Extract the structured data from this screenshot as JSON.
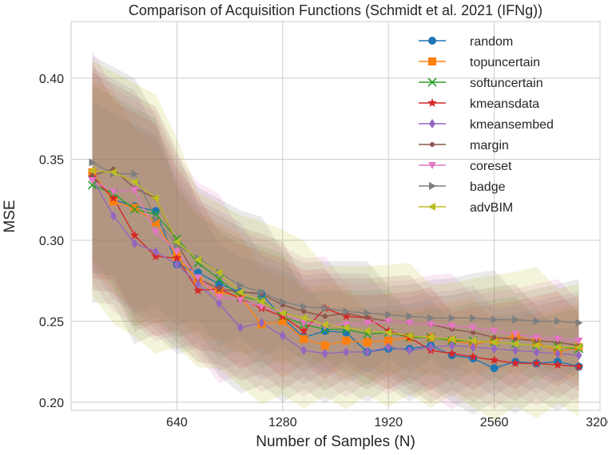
{
  "chart_data": {
    "type": "line",
    "title": "Comparison of Acquisition Functions (Schmidt et al. 2021 (IFNg))",
    "xlabel": "Number of Samples (N)",
    "ylabel": "MSE",
    "xlim": [
      0,
      3200
    ],
    "ylim": [
      0.195,
      0.435
    ],
    "xticks": [
      640,
      1280,
      1920,
      2560,
      3200
    ],
    "xtick_labels": [
      "640",
      "1280",
      "1920",
      "2560",
      "3200"
    ],
    "yticks": [
      0.2,
      0.25,
      0.3,
      0.35,
      0.4
    ],
    "ytick_labels": [
      "0.20",
      "0.25",
      "0.30",
      "0.35",
      "0.40"
    ],
    "grid": true,
    "legend_position": "top-right",
    "x": [
      128,
      256,
      384,
      512,
      640,
      768,
      896,
      1024,
      1152,
      1280,
      1408,
      1536,
      1664,
      1792,
      1920,
      2048,
      2176,
      2304,
      2432,
      2560,
      2688,
      2816,
      2944,
      3072
    ],
    "series": [
      {
        "name": "random",
        "color": "#1f77b4",
        "marker": "circle",
        "values": [
          0.34,
          0.325,
          0.321,
          0.318,
          0.285,
          0.28,
          0.273,
          0.268,
          0.267,
          0.252,
          0.24,
          0.244,
          0.243,
          0.231,
          0.233,
          0.233,
          0.235,
          0.229,
          0.227,
          0.221,
          0.225,
          0.224,
          0.225,
          0.222
        ]
      },
      {
        "name": "topuncertain",
        "color": "#ff7f0e",
        "marker": "square",
        "values": [
          0.342,
          0.324,
          0.32,
          0.311,
          0.29,
          0.275,
          0.268,
          0.265,
          0.248,
          0.25,
          0.239,
          0.235,
          0.238,
          0.237,
          0.238,
          0.24,
          0.24,
          0.238,
          0.236,
          0.238,
          0.241,
          0.237,
          0.231,
          0.234
        ]
      },
      {
        "name": "softuncertain",
        "color": "#2ca02c",
        "marker": "x",
        "values": [
          0.334,
          0.329,
          0.319,
          0.316,
          0.301,
          0.286,
          0.276,
          0.265,
          0.263,
          0.253,
          0.248,
          0.245,
          0.245,
          0.242,
          0.243,
          0.24,
          0.24,
          0.238,
          0.238,
          0.237,
          0.236,
          0.235,
          0.234,
          0.233
        ]
      },
      {
        "name": "kmeansdata",
        "color": "#d62728",
        "marker": "star",
        "values": [
          0.339,
          0.326,
          0.303,
          0.29,
          0.289,
          0.269,
          0.27,
          0.264,
          0.258,
          0.253,
          0.244,
          0.258,
          0.253,
          0.252,
          0.244,
          0.24,
          0.232,
          0.23,
          0.228,
          0.226,
          0.224,
          0.224,
          0.223,
          0.222
        ]
      },
      {
        "name": "kmeansembed",
        "color": "#9467bd",
        "marker": "diamond",
        "values": [
          0.338,
          0.315,
          0.298,
          0.293,
          0.285,
          0.273,
          0.261,
          0.246,
          0.249,
          0.241,
          0.232,
          0.23,
          0.231,
          0.231,
          0.234,
          0.232,
          0.234,
          0.235,
          0.234,
          0.233,
          0.232,
          0.231,
          0.23,
          0.229
        ]
      },
      {
        "name": "margin",
        "color": "#8c564b",
        "marker": "dot",
        "values": [
          0.34,
          0.344,
          0.332,
          0.326,
          0.298,
          0.276,
          0.27,
          0.268,
          0.267,
          0.26,
          0.256,
          0.253,
          0.255,
          0.252,
          0.25,
          0.249,
          0.248,
          0.245,
          0.243,
          0.24,
          0.239,
          0.238,
          0.237,
          0.235
        ]
      },
      {
        "name": "coreset",
        "color": "#e377c2",
        "marker": "triangle-down",
        "values": [
          0.337,
          0.33,
          0.331,
          0.305,
          0.293,
          0.277,
          0.265,
          0.263,
          0.259,
          0.255,
          0.249,
          0.247,
          0.248,
          0.249,
          0.25,
          0.249,
          0.248,
          0.247,
          0.246,
          0.244,
          0.242,
          0.24,
          0.239,
          0.238
        ]
      },
      {
        "name": "badge",
        "color": "#7f7f7f",
        "marker": "triangle-right",
        "values": [
          0.348,
          0.341,
          0.341,
          0.313,
          0.297,
          0.289,
          0.28,
          0.272,
          0.268,
          0.262,
          0.259,
          0.258,
          0.256,
          0.255,
          0.254,
          0.253,
          0.252,
          0.252,
          0.252,
          0.251,
          0.251,
          0.25,
          0.25,
          0.249
        ]
      },
      {
        "name": "advBIM",
        "color": "#bcbd22",
        "marker": "triangle-left",
        "values": [
          0.343,
          0.342,
          0.336,
          0.326,
          0.299,
          0.288,
          0.28,
          0.268,
          0.262,
          0.255,
          0.252,
          0.248,
          0.246,
          0.244,
          0.243,
          0.241,
          0.24,
          0.239,
          0.238,
          0.237,
          0.236,
          0.235,
          0.234,
          0.234
        ]
      }
    ],
    "bands": [
      {
        "lower": [
          0.275,
          0.265,
          0.248,
          0.245,
          0.24,
          0.235,
          0.225,
          0.222,
          0.218,
          0.215,
          0.214,
          0.213,
          0.212,
          0.212,
          0.212,
          0.211,
          0.21,
          0.209,
          0.209,
          0.208,
          0.208,
          0.208,
          0.208,
          0.208
        ],
        "upper": [
          0.405,
          0.395,
          0.385,
          0.375,
          0.345,
          0.325,
          0.315,
          0.305,
          0.298,
          0.29,
          0.28,
          0.278,
          0.275,
          0.272,
          0.27,
          0.268,
          0.268,
          0.266,
          0.266,
          0.265,
          0.264,
          0.264,
          0.264,
          0.264
        ]
      }
    ]
  }
}
